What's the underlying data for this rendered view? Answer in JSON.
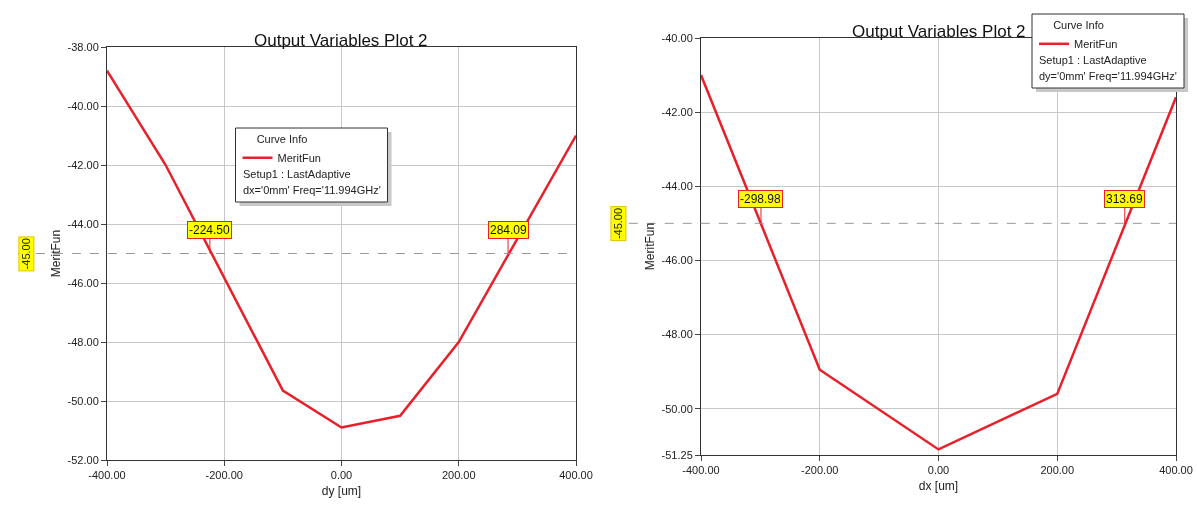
{
  "chart_data": [
    {
      "type": "line",
      "title": "Output Variables Plot 2",
      "xlabel": "dy [um]",
      "ylabel": "MeritFun",
      "legend_title": "Curve Info",
      "legend": "top",
      "x": [
        -400,
        -300,
        -100,
        0,
        100,
        200,
        400
      ],
      "series": [
        {
          "name": "MeritFun",
          "color": "#e8202a",
          "values": [
            -38.8,
            -42.0,
            -49.65,
            -50.9,
            -50.5,
            -48.0,
            -41.0
          ]
        }
      ],
      "xlim": [
        -400,
        400
      ],
      "ylim": [
        -52,
        -38
      ],
      "grid": true,
      "xticks": [
        {
          "value": -400,
          "label": "-400.00"
        },
        {
          "value": -200,
          "label": "-200.00"
        },
        {
          "value": 0,
          "label": "0.00"
        },
        {
          "value": 200,
          "label": "200.00"
        },
        {
          "value": 400,
          "label": "400.00"
        }
      ],
      "yticks": [
        {
          "value": -52,
          "label": "-52.00"
        },
        {
          "value": -50,
          "label": "-50.00"
        },
        {
          "value": -48,
          "label": "-48.00"
        },
        {
          "value": -46,
          "label": "-46.00"
        },
        {
          "value": -44,
          "label": "-44.00"
        },
        {
          "value": -42,
          "label": "-42.00"
        },
        {
          "value": -40,
          "label": "-40.00"
        },
        {
          "value": -38,
          "label": "-38.00"
        }
      ],
      "ref_lines": [
        {
          "axis": "y",
          "value": -45,
          "label": "-45.00",
          "line_style": "dashed"
        }
      ],
      "annotations": [
        "Setup1 : LastAdaptive",
        "dx='0mm' Freq='11.994GHz'",
        {
          "text": "-224.50",
          "x": -224.5,
          "y": -45
        },
        {
          "text": "284.09",
          "x": 284.09,
          "y": -45
        }
      ]
    },
    {
      "type": "line",
      "title": "Output Variables Plot 2",
      "xlabel": "dx [um]",
      "ylabel": "MeritFun",
      "legend_title": "Curve Info",
      "legend": "top right",
      "x": [
        -400,
        -200,
        0,
        200,
        400
      ],
      "series": [
        {
          "name": "MeritFun",
          "color": "#e8202a",
          "values": [
            -41.0,
            -48.95,
            -51.1,
            -49.6,
            -41.6
          ]
        }
      ],
      "xlim": [
        -400,
        400
      ],
      "ylim": [
        -51.25,
        -40
      ],
      "grid": true,
      "xticks": [
        {
          "value": -400,
          "label": "-400.00"
        },
        {
          "value": -200,
          "label": "-200.00"
        },
        {
          "value": 0,
          "label": "0.00"
        },
        {
          "value": 200,
          "label": "200.00"
        },
        {
          "value": 400,
          "label": "400.00"
        }
      ],
      "yticks": [
        {
          "value": -51.25,
          "label": "-51.25"
        },
        {
          "value": -50,
          "label": "-50.00"
        },
        {
          "value": -48,
          "label": "-48.00"
        },
        {
          "value": -46,
          "label": "-46.00"
        },
        {
          "value": -44,
          "label": "-44.00"
        },
        {
          "value": -42,
          "label": "-42.00"
        },
        {
          "value": -40,
          "label": "-40.00"
        }
      ],
      "ref_lines": [
        {
          "axis": "y",
          "value": -45,
          "label": "-45.00",
          "line_style": "dashed"
        }
      ],
      "annotations": [
        "Setup1 : LastAdaptive",
        "dy='0mm' Freq='11.994GHz'",
        {
          "text": "-298.98",
          "x": -298.98,
          "y": -45
        },
        {
          "text": "313.69",
          "x": 313.69,
          "y": -45
        }
      ]
    }
  ]
}
